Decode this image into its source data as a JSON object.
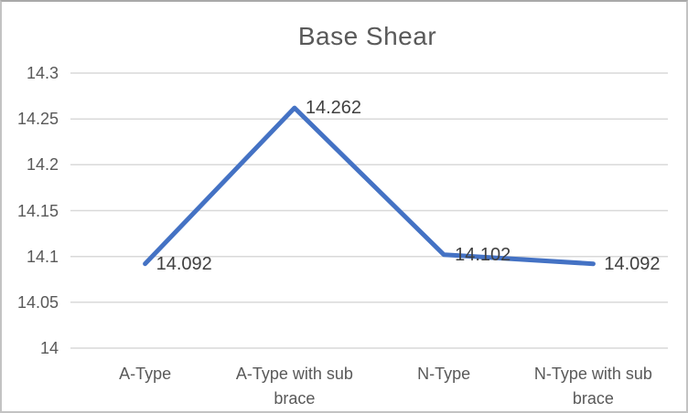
{
  "chart_data": {
    "type": "line",
    "title": "Base Shear",
    "categories": [
      "A-Type",
      "A-Type with sub brace",
      "N-Type",
      "N-Type with sub brace"
    ],
    "series": [
      {
        "name": "Base Shear",
        "values": [
          14.092,
          14.262,
          14.102,
          14.092
        ]
      }
    ],
    "data_labels": [
      "14.092",
      "14.262",
      "14.102",
      "14.092"
    ],
    "data_label_position": "right",
    "y_ticks": [
      14,
      14.05,
      14.1,
      14.15,
      14.2,
      14.25,
      14.3
    ],
    "y_tick_labels": [
      "14",
      "14.05",
      "14.1",
      "14.15",
      "14.2",
      "14.25",
      "14.3"
    ],
    "ylim": [
      14,
      14.3
    ],
    "xlabel": "",
    "ylabel": "",
    "grid": true,
    "legend": "none",
    "colors": {
      "line": "#4472C4",
      "gridline": "#D9D9D9",
      "title_text": "#595959",
      "axis_text": "#595959",
      "data_label_text": "#404040",
      "background": "#FFFFFF",
      "border": "#C3C3C3"
    }
  }
}
